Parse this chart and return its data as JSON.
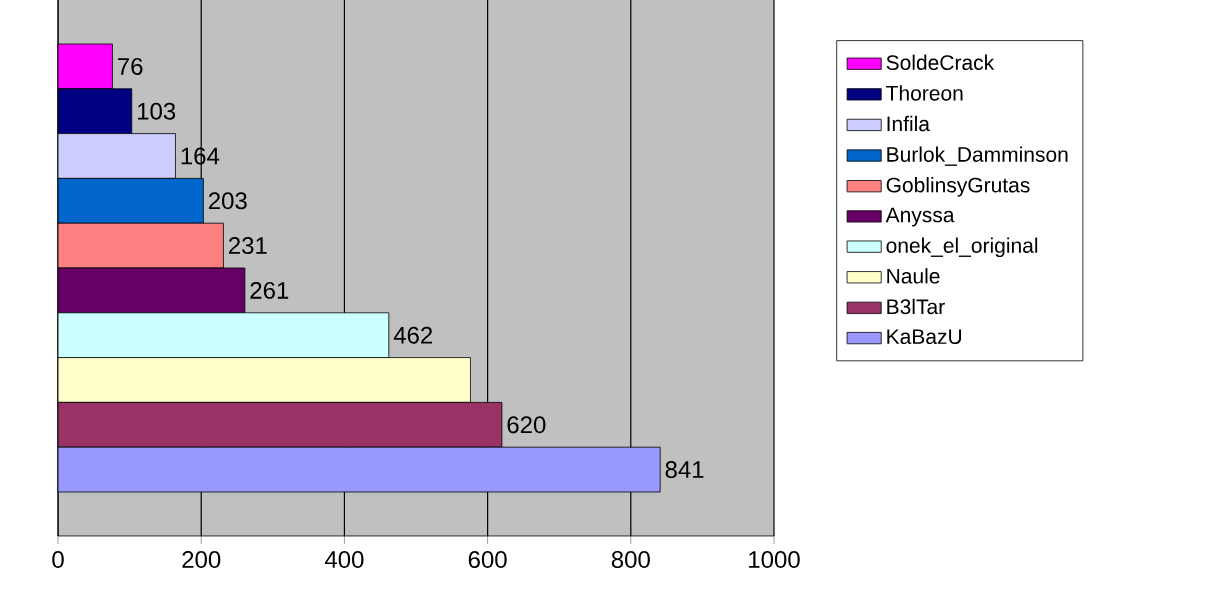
{
  "chart_data": {
    "type": "bar",
    "orientation": "horizontal",
    "categories": [
      null
    ],
    "series": [
      {
        "name": "SoldeCrack",
        "color": "#ff00ff",
        "values": [
          76
        ],
        "value_labels": [
          "76"
        ]
      },
      {
        "name": "Thoreon",
        "color": "#000080",
        "values": [
          103
        ],
        "value_labels": [
          "103"
        ]
      },
      {
        "name": "Infila",
        "color": "#ccccff",
        "values": [
          164
        ],
        "value_labels": [
          "164"
        ]
      },
      {
        "name": "Burlok_Damminson",
        "color": "#0066cc",
        "values": [
          203
        ],
        "value_labels": [
          "203"
        ]
      },
      {
        "name": "GoblinsyGrutas",
        "color": "#ff8080",
        "values": [
          231
        ],
        "value_labels": [
          "231"
        ]
      },
      {
        "name": "Anyssa",
        "color": "#660066",
        "values": [
          261
        ],
        "value_labels": [
          "261"
        ]
      },
      {
        "name": "onek_el_original",
        "color": "#ccffff",
        "values": [
          462
        ],
        "value_labels": [
          "462"
        ]
      },
      {
        "name": "Naule",
        "color": "#ffffcc",
        "values": [
          576
        ],
        "value_labels": [
          null
        ]
      },
      {
        "name": "B3lTar",
        "color": "#993366",
        "values": [
          620
        ],
        "value_labels": [
          "620"
        ]
      },
      {
        "name": "KaBazU",
        "color": "#9999ff",
        "values": [
          841
        ],
        "value_labels": [
          "841"
        ]
      }
    ],
    "xlim": [
      0,
      1000
    ],
    "xticks": [
      0,
      200,
      400,
      600,
      800,
      1000
    ],
    "grid": "x",
    "legend": "right"
  }
}
